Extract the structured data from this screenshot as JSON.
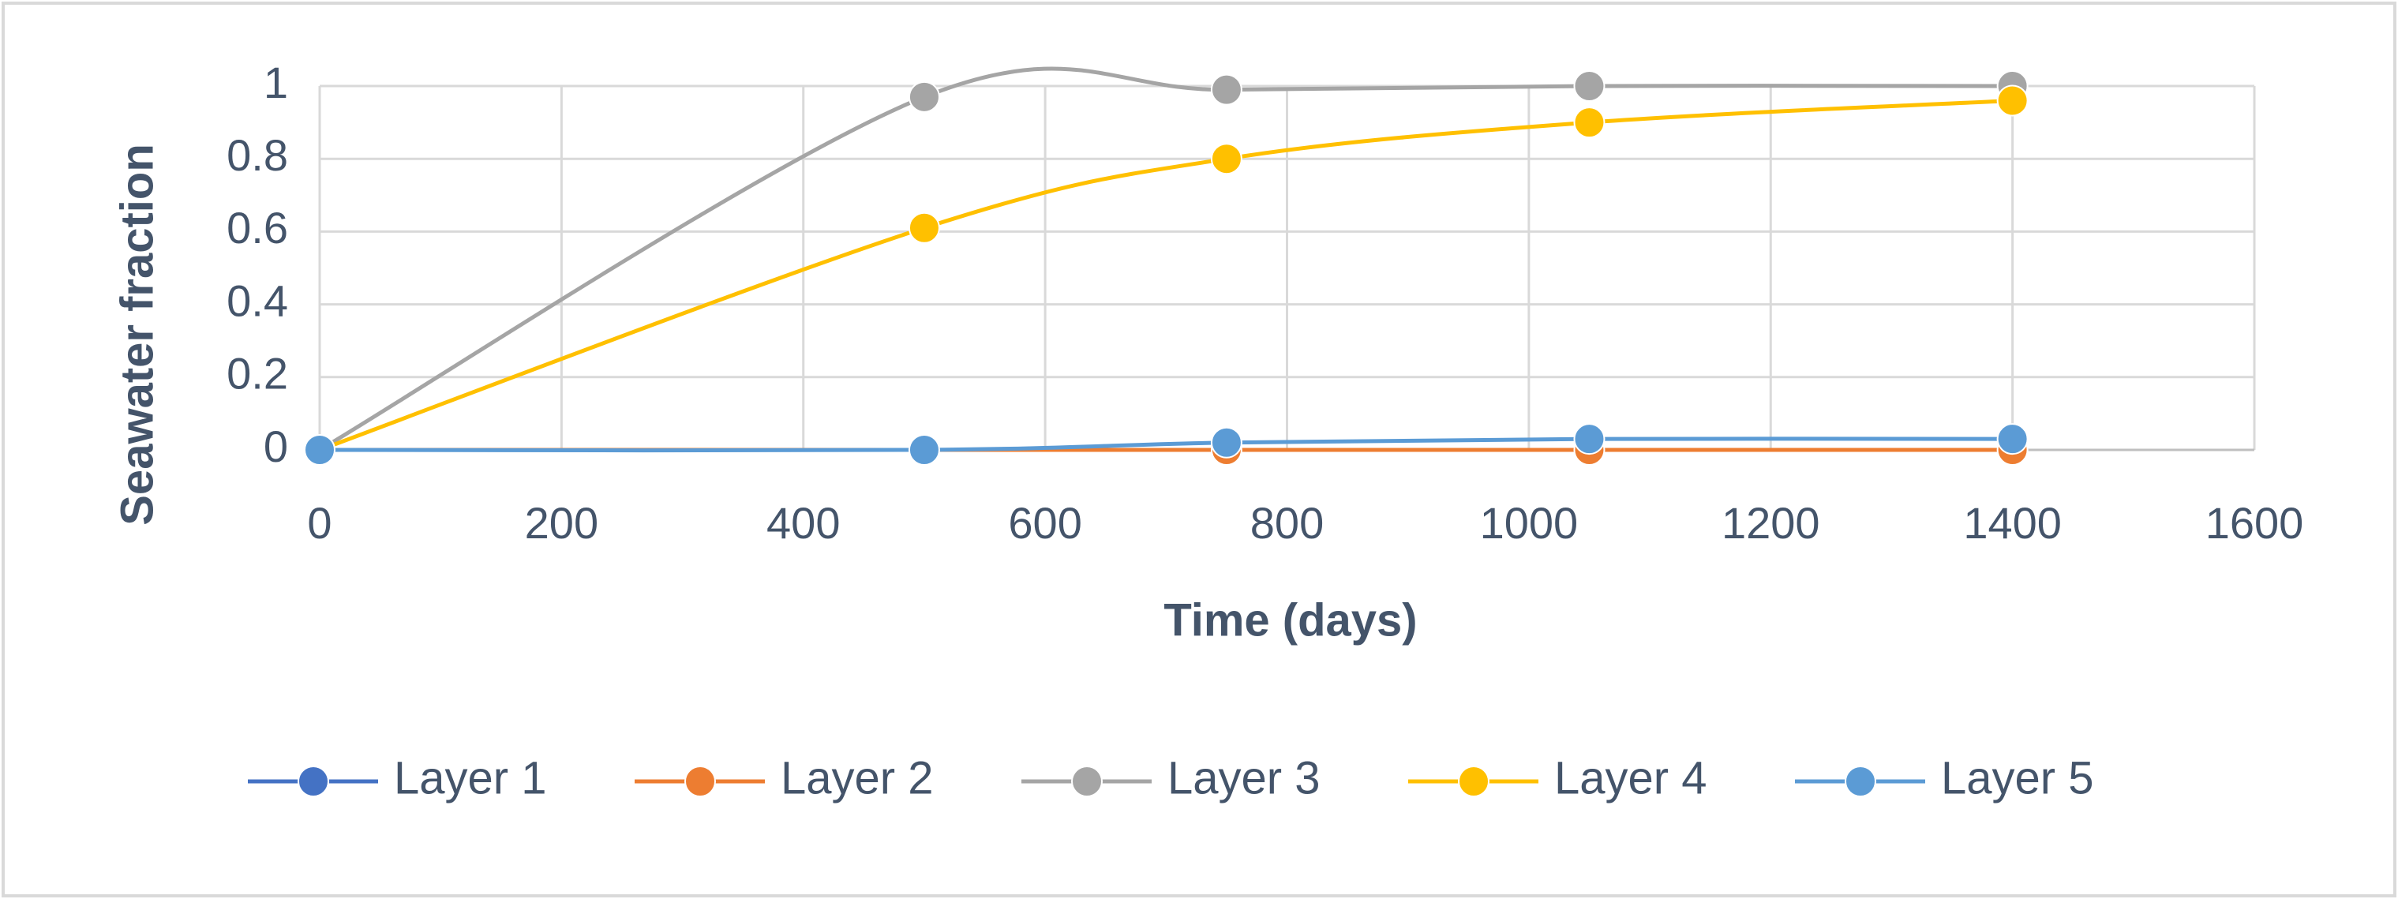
{
  "chart_data": {
    "type": "line",
    "x_label": "Time (days)",
    "y_label": "Seawater fraction",
    "x": [
      0,
      500,
      750,
      1050,
      1400
    ],
    "series": [
      {
        "name": "Layer 1",
        "color": "#4472c4",
        "values": [
          0,
          0,
          0,
          0,
          0
        ]
      },
      {
        "name": "Layer 2",
        "color": "#ed7d31",
        "values": [
          0,
          0,
          0,
          0,
          0
        ]
      },
      {
        "name": "Layer 3",
        "color": "#a5a5a5",
        "values": [
          0,
          0.97,
          0.99,
          1,
          1
        ]
      },
      {
        "name": "Layer 4",
        "color": "#ffc000",
        "values": [
          0,
          0.61,
          0.8,
          0.9,
          0.96
        ]
      },
      {
        "name": "Layer 5",
        "color": "#5b9bd5",
        "values": [
          0,
          0,
          0.02,
          0.03,
          0.03
        ]
      }
    ],
    "xlim": [
      0,
      1600
    ],
    "xticks": [
      0,
      200,
      400,
      600,
      800,
      1000,
      1200,
      1400,
      1600
    ],
    "ylim": [
      0,
      1
    ],
    "yticks": [
      0,
      0.2,
      0.4,
      0.6,
      0.8,
      1
    ],
    "grid": true,
    "smooth": true,
    "legend": "bottom"
  }
}
